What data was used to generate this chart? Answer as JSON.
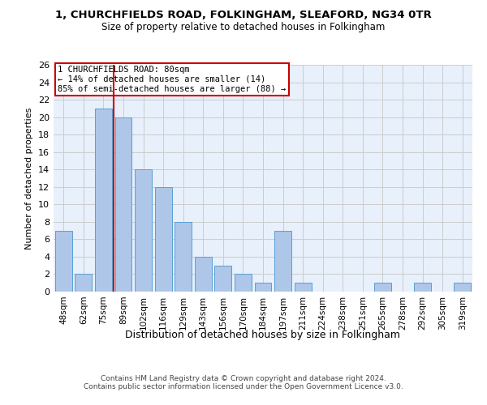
{
  "title": "1, CHURCHFIELDS ROAD, FOLKINGHAM, SLEAFORD, NG34 0TR",
  "subtitle": "Size of property relative to detached houses in Folkingham",
  "xlabel": "Distribution of detached houses by size in Folkingham",
  "ylabel": "Number of detached properties",
  "categories": [
    "48sqm",
    "62sqm",
    "75sqm",
    "89sqm",
    "102sqm",
    "116sqm",
    "129sqm",
    "143sqm",
    "156sqm",
    "170sqm",
    "184sqm",
    "197sqm",
    "211sqm",
    "224sqm",
    "238sqm",
    "251sqm",
    "265sqm",
    "278sqm",
    "292sqm",
    "305sqm",
    "319sqm"
  ],
  "values": [
    7,
    2,
    21,
    20,
    14,
    12,
    8,
    4,
    3,
    2,
    1,
    7,
    1,
    0,
    0,
    0,
    1,
    0,
    1,
    0,
    1
  ],
  "bar_color": "#aec6e8",
  "bar_edge_color": "#5a9fd4",
  "grid_color": "#cccccc",
  "background_color": "#e8f0fb",
  "red_line_x": 2.5,
  "annotation_text": "1 CHURCHFIELDS ROAD: 80sqm\n← 14% of detached houses are smaller (14)\n85% of semi-detached houses are larger (88) →",
  "annotation_box_edgecolor": "#cc0000",
  "footer_line1": "Contains HM Land Registry data © Crown copyright and database right 2024.",
  "footer_line2": "Contains public sector information licensed under the Open Government Licence v3.0.",
  "ylim": [
    0,
    26
  ],
  "yticks": [
    0,
    2,
    4,
    6,
    8,
    10,
    12,
    14,
    16,
    18,
    20,
    22,
    24,
    26
  ]
}
